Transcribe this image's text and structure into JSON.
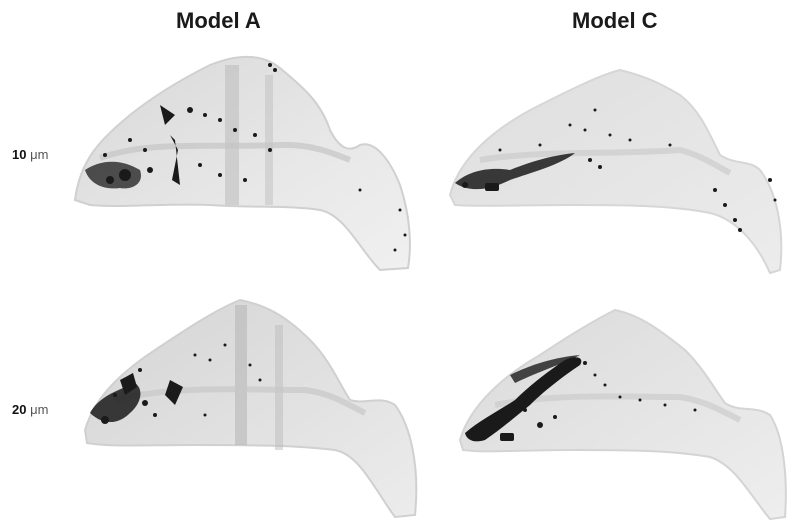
{
  "figure": {
    "columns": [
      {
        "title": "Model A"
      },
      {
        "title": "Model C"
      }
    ],
    "rows": [
      {
        "value": "10",
        "unit": "μm"
      },
      {
        "value": "20",
        "unit": "μm"
      }
    ]
  },
  "colors": {
    "tissue_light": "#e6e6e6",
    "tissue_mid": "#cfcfcf",
    "tissue_dark": "#b5b5b5",
    "deposit": "#1a1a1a"
  }
}
